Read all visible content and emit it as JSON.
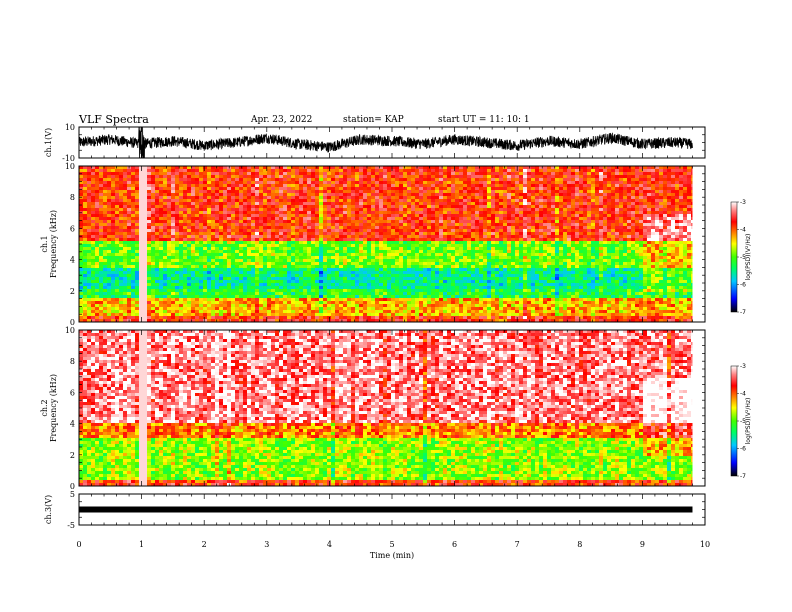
{
  "header": {
    "title": "VLF Spectra",
    "date": "Apr. 23, 2022",
    "station": "station= KAP",
    "start": "start UT =  11: 10: 1"
  },
  "colors": {
    "scale": [
      "#000000",
      "#0000ff",
      "#00c8ff",
      "#00ff60",
      "#40ff00",
      "#ffff00",
      "#ff8000",
      "#ff0000",
      "#ff8080",
      "#ffffff"
    ]
  },
  "chart_data": [
    {
      "type": "line",
      "panel": "ch1-waveform",
      "ylabel": "ch.1(V)",
      "ylim": [
        -10,
        10
      ],
      "yticks": [
        "10",
        "-10"
      ],
      "xlim": [
        0,
        10
      ],
      "series": [
        {
          "x": [
            0,
            0.5,
            1.0,
            1.5,
            2.0,
            2.5,
            3.0,
            3.5,
            4.0,
            4.5,
            5.0,
            5.5,
            6.0,
            6.5,
            7.0,
            7.5,
            8.0,
            8.5,
            9.0,
            9.5,
            9.8
          ],
          "values": [
            0,
            2,
            -1,
            1,
            -2,
            0,
            3,
            -1,
            -3,
            2,
            1,
            -1,
            2,
            0,
            -2,
            1,
            -1,
            3,
            -1,
            0,
            -1
          ]
        }
      ]
    },
    {
      "type": "heatmap",
      "panel": "ch1-spectrogram",
      "ylabel": "ch.1\nFrequency (kHz)",
      "ylim": [
        0,
        10
      ],
      "yticks": [
        "0",
        "2",
        "4",
        "6",
        "8",
        "10"
      ],
      "xlim": [
        0,
        10
      ],
      "data_end_min": 9.8,
      "bands_khz": [
        {
          "from": 0,
          "to": 0.3,
          "log_psd": -3.8
        },
        {
          "from": 0.3,
          "to": 1.5,
          "log_psd": -4.3
        },
        {
          "from": 1.5,
          "to": 2.2,
          "log_psd": -5.2
        },
        {
          "from": 2.2,
          "to": 3.4,
          "log_psd": -5.5
        },
        {
          "from": 3.4,
          "to": 5.2,
          "log_psd": -4.9
        },
        {
          "from": 5.2,
          "to": 10,
          "log_psd": -3.8
        }
      ],
      "colorbar": {
        "label": "log(PSD)(V²/Hz)",
        "range": [
          -7,
          -3
        ],
        "ticks": [
          "-3",
          "-4",
          "-5",
          "-6",
          "-7"
        ]
      }
    },
    {
      "type": "heatmap",
      "panel": "ch2-spectrogram",
      "ylabel": "ch.2\nFrequency (kHz)",
      "ylim": [
        0,
        10
      ],
      "yticks": [
        "0",
        "2",
        "4",
        "6",
        "8",
        "10"
      ],
      "xlim": [
        0,
        10
      ],
      "data_end_min": 9.8,
      "bands_khz": [
        {
          "from": 0,
          "to": 0.3,
          "log_psd": -3.8
        },
        {
          "from": 0.3,
          "to": 3.0,
          "log_psd": -4.8
        },
        {
          "from": 3.0,
          "to": 4.0,
          "log_psd": -4.1
        },
        {
          "from": 4.0,
          "to": 10,
          "log_psd": -3.3
        }
      ],
      "colorbar": {
        "label": "log(PSD)(V²/Hz)",
        "range": [
          -7,
          -3
        ],
        "ticks": [
          "-3",
          "-4",
          "-5",
          "-6",
          "-7"
        ]
      }
    },
    {
      "type": "line",
      "panel": "ch3-waveform",
      "ylabel": "ch.3(V)",
      "ylim": [
        -5,
        5
      ],
      "yticks": [
        "5",
        "-5"
      ],
      "xlim": [
        0,
        10
      ],
      "xlabel": "Time (min)",
      "xticks": [
        "0",
        "1",
        "2",
        "3",
        "4",
        "5",
        "6",
        "7",
        "8",
        "9",
        "10"
      ],
      "series": [
        {
          "x": [
            0,
            9.8
          ],
          "values": [
            0,
            0
          ]
        }
      ]
    }
  ]
}
